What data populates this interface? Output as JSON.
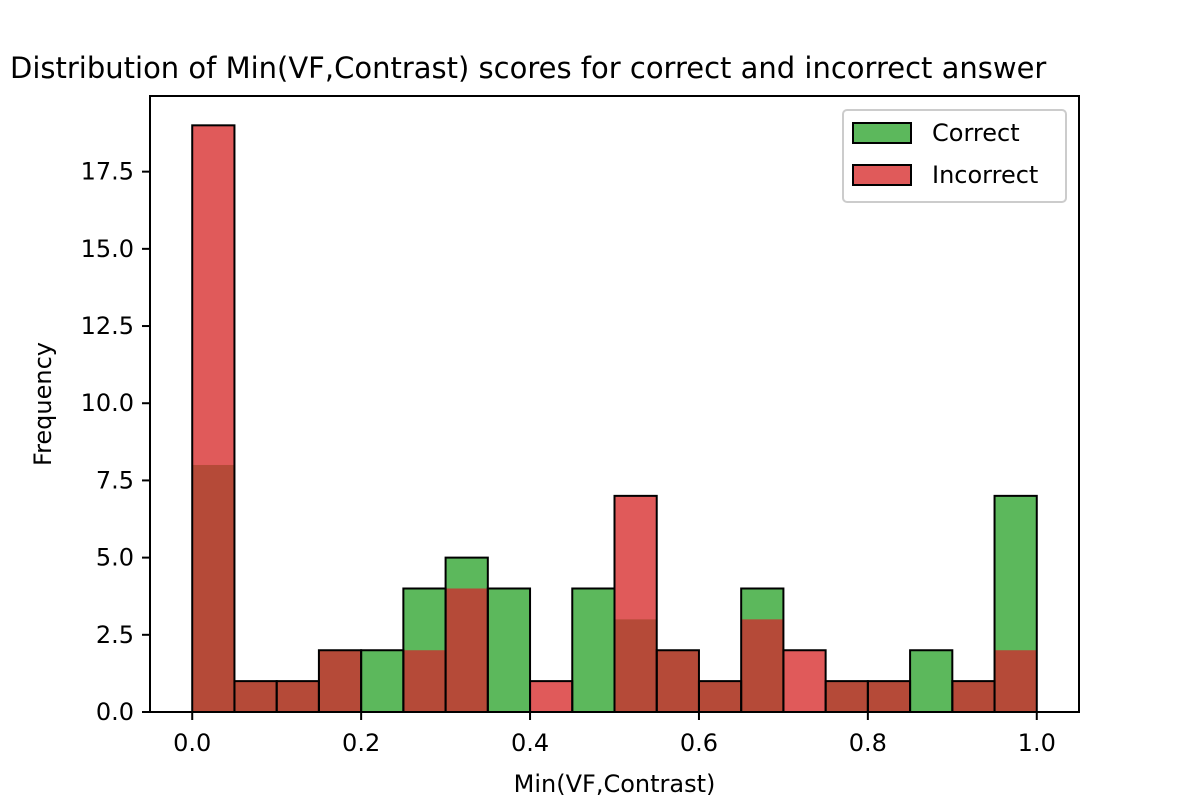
{
  "chart_data": {
    "type": "bar",
    "subtype": "overlaid-histogram",
    "title": "Distribution of Min(VF,Contrast) scores for correct and incorrect answer",
    "xlabel": "Min(VF,Contrast)",
    "ylabel": "Frequency",
    "xlim": [
      -0.05,
      1.05
    ],
    "ylim": [
      0,
      19.95
    ],
    "xticks": [
      0.0,
      0.2,
      0.4,
      0.6,
      0.8,
      1.0
    ],
    "xtick_labels": [
      "0.0",
      "0.2",
      "0.4",
      "0.6",
      "0.8",
      "1.0"
    ],
    "yticks": [
      0.0,
      2.5,
      5.0,
      7.5,
      10.0,
      12.5,
      15.0,
      17.5
    ],
    "ytick_labels": [
      "0.0",
      "2.5",
      "5.0",
      "7.5",
      "10.0",
      "12.5",
      "15.0",
      "17.5"
    ],
    "bin_edges": [
      0.0,
      0.05,
      0.1,
      0.15,
      0.2,
      0.25,
      0.3,
      0.35,
      0.4,
      0.45,
      0.5,
      0.55,
      0.6,
      0.65,
      0.7,
      0.75,
      0.8,
      0.85,
      0.9,
      0.95,
      1.0
    ],
    "series": [
      {
        "name": "Correct",
        "color": "#5cb85c",
        "values": [
          8,
          1,
          1,
          2,
          2,
          4,
          5,
          4,
          0,
          4,
          3,
          2,
          1,
          4,
          0,
          1,
          1,
          2,
          1,
          7
        ]
      },
      {
        "name": "Incorrect",
        "color": "#e05a5a",
        "values": [
          19,
          1,
          1,
          2,
          0,
          2,
          4,
          0,
          1,
          0,
          7,
          2,
          1,
          3,
          2,
          1,
          1,
          0,
          1,
          2
        ]
      }
    ],
    "overlap_color": "#b54a38",
    "legend": {
      "position": "top-right",
      "entries": [
        "Correct",
        "Incorrect"
      ]
    },
    "grid": false
  }
}
